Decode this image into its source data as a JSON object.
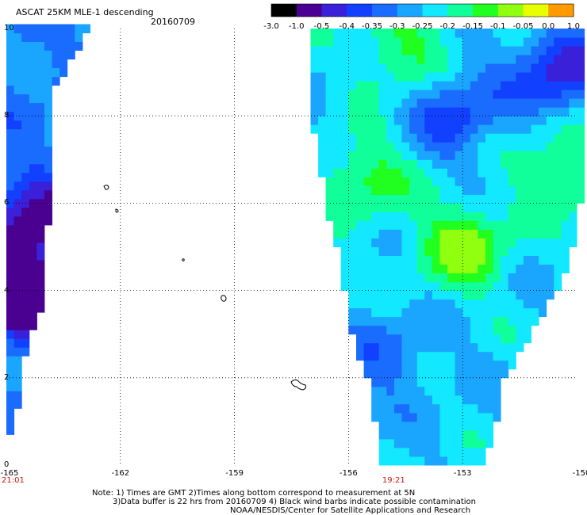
{
  "title": "ASCAT 25KM MLE-1 descending",
  "date": "20160709",
  "colorbar": {
    "labels": [
      "-3.0",
      "-1.0",
      "-0.5",
      "-0.4",
      "-0.35",
      "-0.3",
      "-0.25",
      "-0.2",
      "-0.15",
      "-0.1",
      "-0.05",
      "0.0",
      "1.0"
    ],
    "colors": [
      "#000000",
      "#4a0090",
      "#3a20d8",
      "#1240ff",
      "#1a6cff",
      "#1aa6ff",
      "#12e8ff",
      "#10ff9a",
      "#20ff20",
      "#90ff10",
      "#e8ff00",
      "#ff9a00",
      "#ff3000"
    ]
  },
  "y_axis": {
    "labels": [
      "10",
      "8",
      "6",
      "4",
      "2",
      "0"
    ],
    "values": [
      10,
      8,
      6,
      4,
      2,
      0
    ]
  },
  "x_axis": {
    "labels": [
      "-165",
      "-162",
      "-159",
      "-156",
      "-153",
      "-150"
    ],
    "values": [
      -165,
      -162,
      -159,
      -156,
      -153,
      -150
    ]
  },
  "pass_times": [
    {
      "label": "21:01",
      "lon": -165
    },
    {
      "label": "19:21",
      "lon": -154.8
    }
  ],
  "notes": [
    "Note: 1) Times are GMT 2)Times along bottom correspond to measurement at 5N",
    "3)Data buffer is 22 hrs from 20160709 4) Black wind barbs indicate possible contamination",
    "NOAA/NESDIS/Center for Satellite Applications and Research"
  ],
  "chart_data": {
    "type": "heatmap",
    "title": "ASCAT 25KM MLE-1 descending",
    "date": "20160709",
    "lon_range": [
      -165,
      -150
    ],
    "lat_range": [
      0,
      10
    ],
    "grid": "dotted",
    "value_scale_labels": [
      "-3.0",
      "-1.0",
      "-0.5",
      "-0.4",
      "-0.35",
      "-0.3",
      "-0.25",
      "-0.2",
      "-0.15",
      "-0.1",
      "-0.05",
      "0.0",
      "1.0"
    ],
    "swaths": [
      {
        "name": "west",
        "lat_edges": [
          [
            0.7,
            -165,
            -164.9
          ],
          [
            1.3,
            -165,
            -164.8
          ],
          [
            2.5,
            -165,
            -164.6
          ],
          [
            3.8,
            -165,
            -164.1
          ],
          [
            5.5,
            -165,
            -164.0
          ],
          [
            7.0,
            -165,
            -163.9
          ],
          [
            8.5,
            -165,
            -163.9
          ],
          [
            10,
            -165,
            -162.9
          ]
        ]
      },
      {
        "name": "east",
        "lat_edges": [
          [
            0.0,
            -155.1,
            -152.6
          ],
          [
            1.0,
            -155.2,
            -152.2
          ],
          [
            2.0,
            -155.4,
            -152.0
          ],
          [
            3.0,
            -155.8,
            -151.3
          ],
          [
            4.0,
            -156.0,
            -150.6
          ],
          [
            5.0,
            -156.2,
            -150.2
          ],
          [
            6.0,
            -156.5,
            -150.0
          ],
          [
            7.0,
            -156.7,
            -150.0
          ],
          [
            8.0,
            -156.9,
            -150.0
          ],
          [
            9.0,
            -157.0,
            -150.0
          ],
          [
            10.0,
            -157.0,
            -150.0
          ]
        ]
      }
    ],
    "features": [
      {
        "kind": "blue-minimum",
        "lon": -164.3,
        "lat": 5.5,
        "value_level": 2
      },
      {
        "kind": "blue-minimum",
        "lon": -164.4,
        "lat": 3.8,
        "value_level": 1
      },
      {
        "kind": "blue-band",
        "lon": -153.2,
        "lat": 8.1,
        "value_level": 3
      },
      {
        "kind": "blue-minimum",
        "lon": -150.4,
        "lat": 9.0,
        "value_level": 2
      },
      {
        "kind": "blue-region",
        "lon": -155.0,
        "lat": 2.5,
        "value_level": 4
      },
      {
        "kind": "green-max",
        "lon": -154.6,
        "lat": 9.5,
        "value_level": 8
      },
      {
        "kind": "green-max",
        "lon": -155.6,
        "lat": 6.6,
        "value_level": 8
      },
      {
        "kind": "green-max",
        "lon": -153.0,
        "lat": 5.0,
        "value_level": 9
      },
      {
        "kind": "green-max",
        "lon": -150.4,
        "lat": 6.8,
        "value_level": 8
      }
    ]
  }
}
